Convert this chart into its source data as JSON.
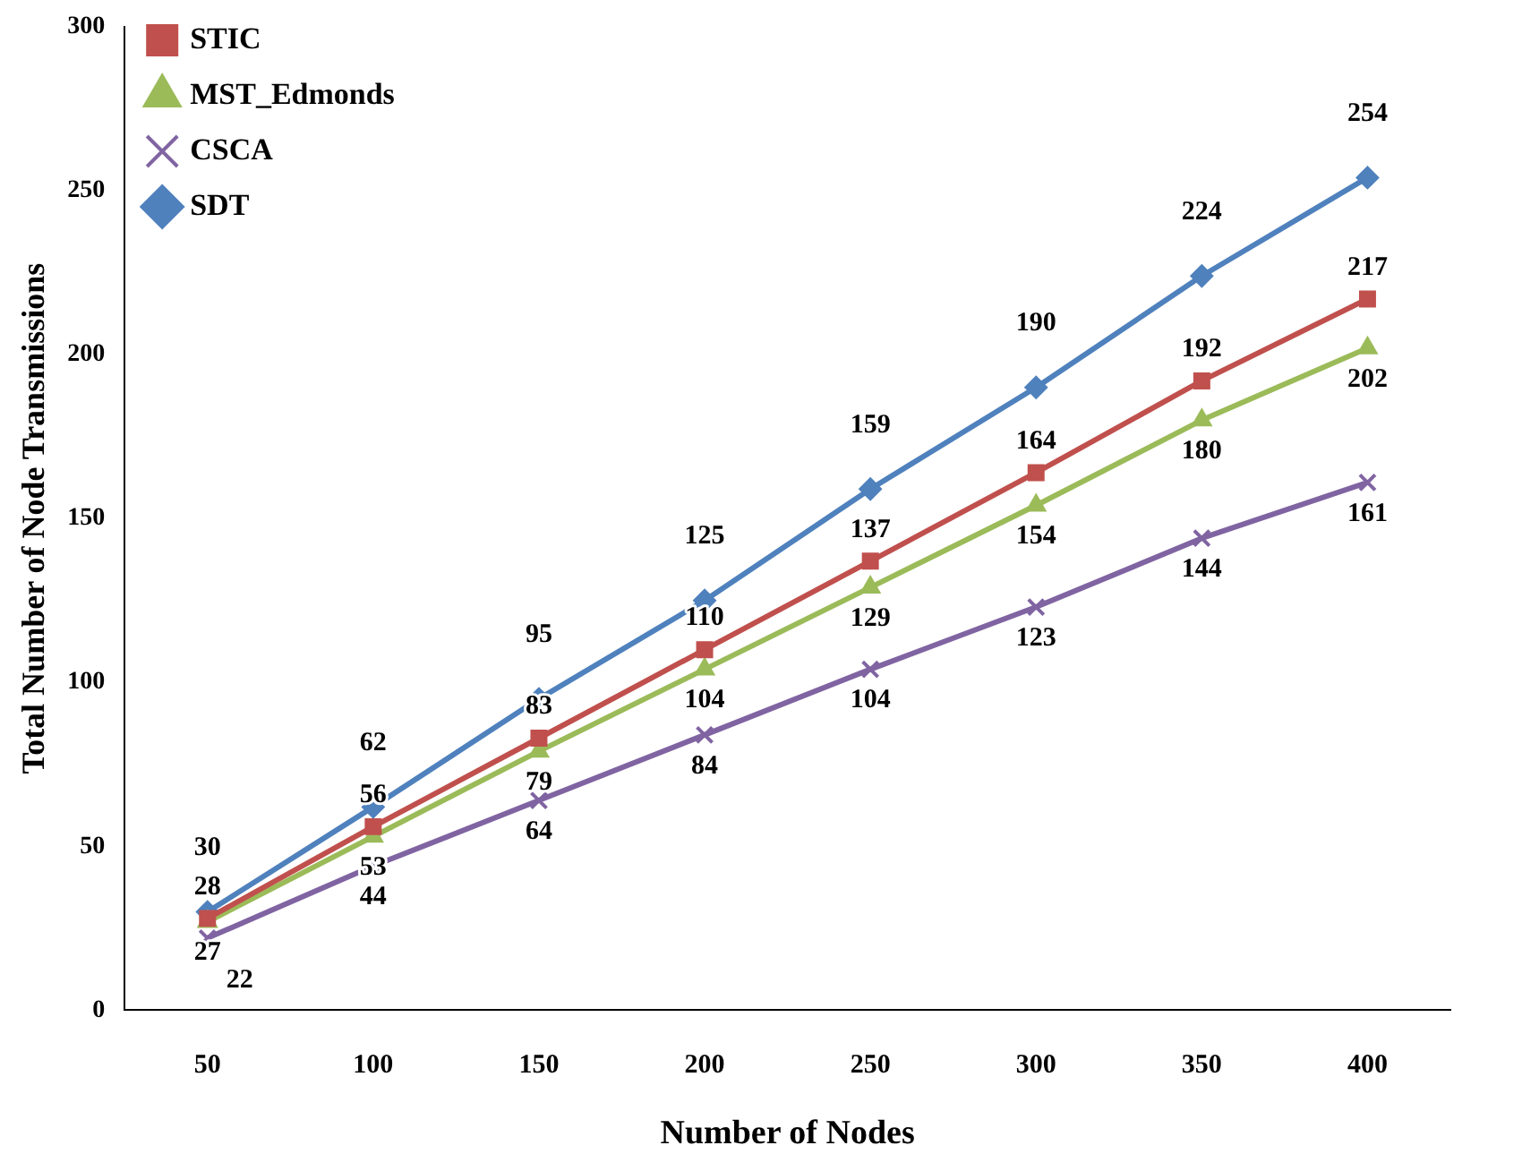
{
  "chart_data": {
    "type": "line",
    "xlabel": "Number of Nodes",
    "ylabel": "Total Number of Node Transmissions",
    "categories": [
      "50",
      "100",
      "150",
      "200",
      "250",
      "300",
      "350",
      "400"
    ],
    "series": [
      {
        "name": "STIC",
        "color": "#c0504d",
        "marker": "square",
        "values": [
          28,
          56,
          83,
          110,
          137,
          164,
          192,
          217
        ]
      },
      {
        "name": "MST_Edmonds",
        "color": "#9bbb59",
        "marker": "triangle",
        "values": [
          27,
          53,
          79,
          104,
          129,
          154,
          180,
          202
        ]
      },
      {
        "name": "CSCA",
        "color": "#8064a2",
        "marker": "cross",
        "values": [
          22,
          44,
          64,
          84,
          104,
          123,
          144,
          161
        ]
      },
      {
        "name": "SDT",
        "color": "#4f81bd",
        "marker": "diamond",
        "values": [
          30,
          62,
          95,
          125,
          159,
          190,
          224,
          254
        ]
      }
    ],
    "ylim": [
      0,
      300
    ],
    "yticks": [
      0,
      50,
      100,
      150,
      200,
      250,
      300
    ],
    "grid": false,
    "legend": "top left",
    "data_labels": true
  }
}
